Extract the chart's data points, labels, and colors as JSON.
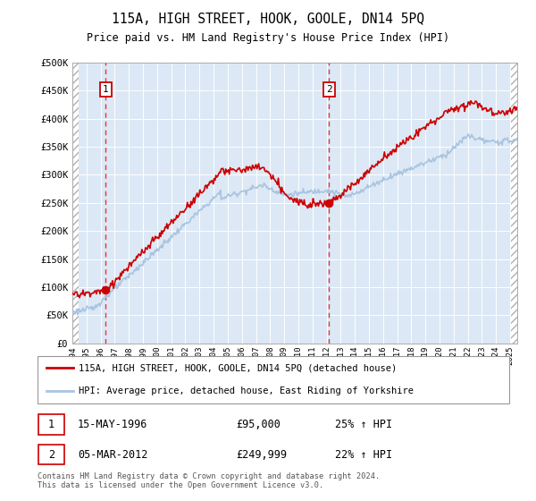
{
  "title": "115A, HIGH STREET, HOOK, GOOLE, DN14 5PQ",
  "subtitle": "Price paid vs. HM Land Registry's House Price Index (HPI)",
  "sale1_date": "15-MAY-1996",
  "sale1_price": 95000,
  "sale1_hpi": "25% ↑ HPI",
  "sale1_x": 1996.37,
  "sale2_date": "05-MAR-2012",
  "sale2_price": 249999,
  "sale2_hpi": "22% ↑ HPI",
  "sale2_x": 2012.18,
  "hpi_color": "#a8c4e0",
  "price_color": "#cc0000",
  "dashed_color": "#ee3333",
  "legend_label_price": "115A, HIGH STREET, HOOK, GOOLE, DN14 5PQ (detached house)",
  "legend_label_hpi": "HPI: Average price, detached house, East Riding of Yorkshire",
  "footer": "Contains HM Land Registry data © Crown copyright and database right 2024.\nThis data is licensed under the Open Government Licence v3.0.",
  "ylim": [
    0,
    500000
  ],
  "xlim_start": 1994,
  "xlim_end": 2025.5,
  "bg_color": "#dce8f5",
  "hatch_color": "#c8c8c8"
}
